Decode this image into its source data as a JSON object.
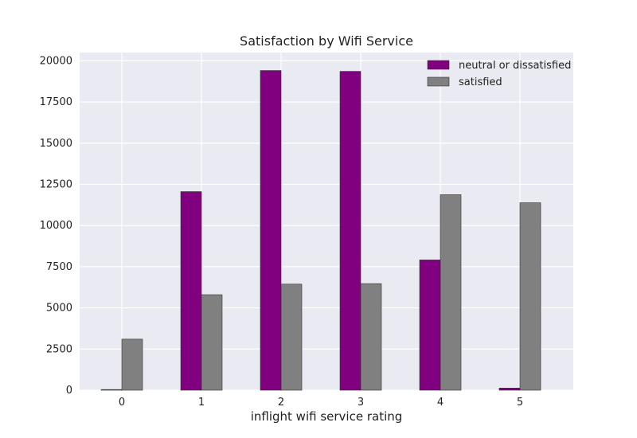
{
  "chart_data": {
    "type": "bar",
    "title": "Satisfaction by Wifi Service",
    "xlabel": "inflight wifi service rating",
    "ylabel": "",
    "categories": [
      "0",
      "1",
      "2",
      "3",
      "4",
      "5"
    ],
    "series": [
      {
        "name": "neutral or dissatisfied",
        "values": [
          40,
          12060,
          19410,
          19360,
          7910,
          130
        ],
        "color": "#800080"
      },
      {
        "name": "satisfied",
        "values": [
          3100,
          5800,
          6440,
          6470,
          11870,
          11380
        ],
        "color": "#808080"
      }
    ],
    "ylim": [
      0,
      20500
    ],
    "yticks": [
      0,
      2500,
      5000,
      7500,
      10000,
      12500,
      15000,
      17500,
      20000
    ],
    "ytick_labels": [
      "0",
      "2500",
      "5000",
      "7500",
      "10000",
      "12500",
      "15000",
      "17500",
      "20000"
    ],
    "grid": true,
    "legend_position": "top-right",
    "background_color": "#eaeaf2"
  }
}
